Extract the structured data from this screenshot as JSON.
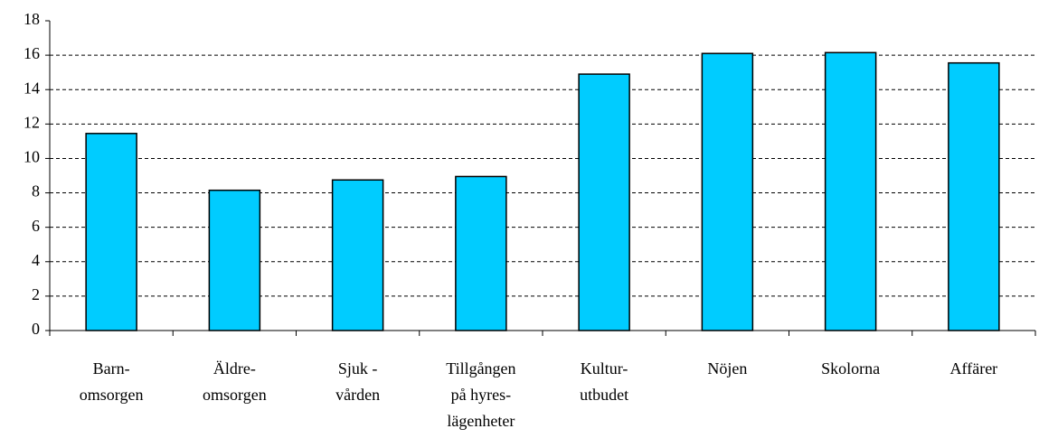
{
  "chart_data": {
    "type": "bar",
    "categories": [
      "Barn-\nomsorgen",
      "Äldre-\nomsorgen",
      "Sjuk -\nvården",
      "Tillgången\npå hyres-\nlägenheter",
      "Kultur-\nutbudet",
      "Nöjen",
      "Skolorna",
      "Affärer"
    ],
    "values": [
      11.45,
      8.15,
      8.75,
      8.95,
      14.9,
      16.1,
      16.15,
      15.55
    ],
    "color": "#00ccff",
    "ylim": [
      0,
      18
    ],
    "yticks": [
      0,
      2,
      4,
      6,
      8,
      10,
      12,
      14,
      16,
      18
    ],
    "grid": true
  }
}
